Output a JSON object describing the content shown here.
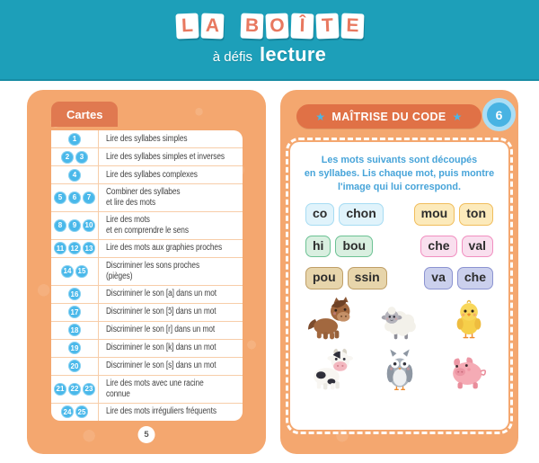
{
  "header": {
    "logo_main": "LA BOÎTE",
    "logo_sub_light": "à défis",
    "logo_sub_bold": "lecture"
  },
  "left_panel": {
    "tab_label": "Cartes",
    "page_number": "5",
    "rows": [
      {
        "cards": [
          "1"
        ],
        "label": "Lire des syllabes simples"
      },
      {
        "cards": [
          "2",
          "3"
        ],
        "label": "Lire des syllabes simples et inverses"
      },
      {
        "cards": [
          "4"
        ],
        "label": "Lire des syllabes complexes"
      },
      {
        "cards": [
          "5",
          "6",
          "7"
        ],
        "label": "Combiner des syllabes\net lire des mots"
      },
      {
        "cards": [
          "8",
          "9",
          "10"
        ],
        "label": "Lire des mots\net en comprendre le sens"
      },
      {
        "cards": [
          "11",
          "12",
          "13"
        ],
        "label": "Lire des mots aux graphies proches"
      },
      {
        "cards": [
          "14",
          "15"
        ],
        "label": "Discriminer les sons proches\n(pièges)"
      },
      {
        "cards": [
          "16"
        ],
        "label": "Discriminer le son [a] dans un mot"
      },
      {
        "cards": [
          "17"
        ],
        "label": "Discriminer le son [ɔ̃] dans un mot"
      },
      {
        "cards": [
          "18"
        ],
        "label": "Discriminer le son [r] dans un mot"
      },
      {
        "cards": [
          "19"
        ],
        "label": "Discriminer le son [k] dans un mot"
      },
      {
        "cards": [
          "20"
        ],
        "label": "Discriminer le son [s] dans un mot"
      },
      {
        "cards": [
          "21",
          "22",
          "23"
        ],
        "label": "Lire des mots avec une racine\nconnue"
      },
      {
        "cards": [
          "24",
          "25"
        ],
        "label": "Lire des mots irréguliers fréquents"
      }
    ]
  },
  "right_panel": {
    "title": "MAÎTRISE DU CODE",
    "star_icon": "★",
    "card_number": "6",
    "instruction": "Les mots suivants sont découpés\nen syllabes. Lis chaque mot, puis montre\nl'image qui lui correspond.",
    "syllable_words": [
      {
        "syllables": [
          "co",
          "chon"
        ],
        "color": "blue"
      },
      {
        "syllables": [
          "mou",
          "ton"
        ],
        "color": "yellow"
      },
      {
        "syllables": [
          "hi",
          "bou"
        ],
        "color": "green"
      },
      {
        "syllables": [
          "che",
          "val"
        ],
        "color": "pink"
      },
      {
        "syllables": [
          "pou",
          "ssin"
        ],
        "color": "tan"
      },
      {
        "syllables": [
          "va",
          "che"
        ],
        "color": "purple"
      }
    ],
    "animals": [
      "horse",
      "sheep",
      "chick",
      "cow",
      "owl",
      "pig"
    ]
  },
  "colors": {
    "banner_teal": "#1d9fb9",
    "logo_letter_coral": "#e8785f",
    "panel_orange": "#f4a76f",
    "accent_orange": "#e07950",
    "chip_blue": "#49b8ea",
    "instruction_blue": "#47a4d9",
    "badge_blue": "#48b3e3",
    "badge_ring": "#abdef5",
    "tile_blue_bg": "#e0f3fb",
    "tile_blue_border": "#a6dcf3",
    "tile_yellow_bg": "#fceabb",
    "tile_yellow_border": "#f0bd5c",
    "tile_green_bg": "#d9efe0",
    "tile_green_border": "#6cc294",
    "tile_pink_bg": "#f9dfee",
    "tile_pink_border": "#f18fc0",
    "tile_tan_bg": "#e7d5ab",
    "tile_tan_border": "#bf9f67",
    "tile_purple_bg": "#cbd0ed",
    "tile_purple_border": "#8b93d1"
  }
}
